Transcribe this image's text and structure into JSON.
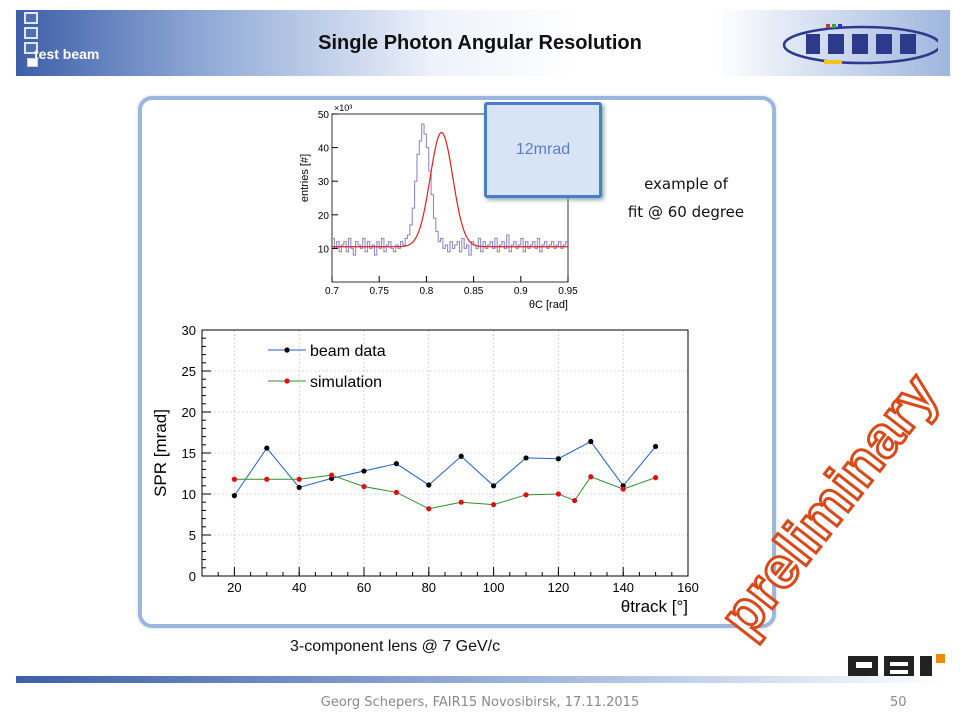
{
  "slide": {
    "section": "test beam",
    "title": "Single Photon Angular Resolution",
    "caption": "3-component lens @ 7 GeV/c",
    "fit_label": "12mrad",
    "example_line1": "example of",
    "example_line2": "fit @ 60 degree",
    "watermark": "preliminary",
    "footer": "Georg Schepers, FAIR15 Novosibirsk, 17.11.2015",
    "page": "50"
  },
  "colors": {
    "beam": "#1f5fc9",
    "beam_marker": "#000000",
    "sim": "#2f8f2f",
    "sim_marker": "#e01010",
    "inset_hist": "#8a80c8",
    "inset_fit": "#e02020",
    "watermark": "#d94a1a"
  },
  "chart_data": [
    {
      "type": "line",
      "title": "",
      "xlabel": "θtrack [°]",
      "ylabel": "SPR [mrad]",
      "xlim": [
        10,
        160
      ],
      "ylim": [
        0,
        30
      ],
      "xticks": [
        20,
        40,
        60,
        80,
        100,
        120,
        140,
        160
      ],
      "yticks": [
        0,
        5,
        10,
        15,
        20,
        25,
        30
      ],
      "legend": "top-left",
      "series": [
        {
          "name": "beam data",
          "x": [
            20,
            30,
            40,
            50,
            60,
            70,
            80,
            90,
            100,
            110,
            120,
            130,
            140,
            150
          ],
          "values": [
            9.8,
            15.6,
            10.8,
            11.9,
            12.8,
            13.7,
            11.1,
            14.6,
            11.0,
            14.4,
            14.3,
            16.4,
            11.0,
            15.8
          ]
        },
        {
          "name": "simulation",
          "x": [
            20,
            30,
            40,
            50,
            60,
            70,
            80,
            90,
            100,
            110,
            120,
            125,
            130,
            140,
            150
          ],
          "values": [
            11.8,
            11.8,
            11.8,
            12.3,
            10.9,
            10.2,
            8.2,
            9.0,
            8.7,
            9.9,
            10.0,
            9.2,
            12.1,
            10.6,
            12.0
          ]
        }
      ]
    },
    {
      "type": "histogram",
      "xlabel": "θC [rad]",
      "ylabel": "entries [#]",
      "y_multiplier": "×10³",
      "xlim": [
        0.7,
        0.95
      ],
      "ylim": [
        0,
        50
      ],
      "xticks": [
        0.7,
        0.75,
        0.8,
        0.85,
        0.9,
        0.95
      ],
      "yticks": [
        10,
        20,
        30,
        40,
        50
      ],
      "bin_width": 0.0025,
      "bin_start": 0.7,
      "counts": [
        13,
        10,
        12,
        9,
        11,
        12,
        9,
        13,
        10,
        8,
        12,
        11,
        10,
        13,
        9,
        12,
        10,
        11,
        8,
        12,
        10,
        13,
        9,
        11,
        12,
        10,
        9,
        11,
        10,
        12,
        11,
        13,
        14,
        17,
        22,
        30,
        38,
        42,
        47,
        44,
        40,
        33,
        26,
        19,
        15,
        12,
        13,
        10,
        11,
        9,
        12,
        10,
        11,
        12,
        9,
        13,
        10,
        11,
        8,
        12,
        11,
        10,
        13,
        9,
        12,
        10,
        11,
        12,
        10,
        13,
        9,
        11,
        12,
        10,
        14,
        9,
        11,
        12,
        10,
        11,
        13,
        9,
        12,
        10,
        11,
        12,
        10,
        13,
        9,
        11,
        12,
        10,
        11,
        12,
        10,
        11,
        12,
        10,
        11,
        12
      ],
      "fit": {
        "baseline": 10.5,
        "amplitude": 34,
        "mean": 0.816,
        "sigma": 0.012
      }
    }
  ]
}
